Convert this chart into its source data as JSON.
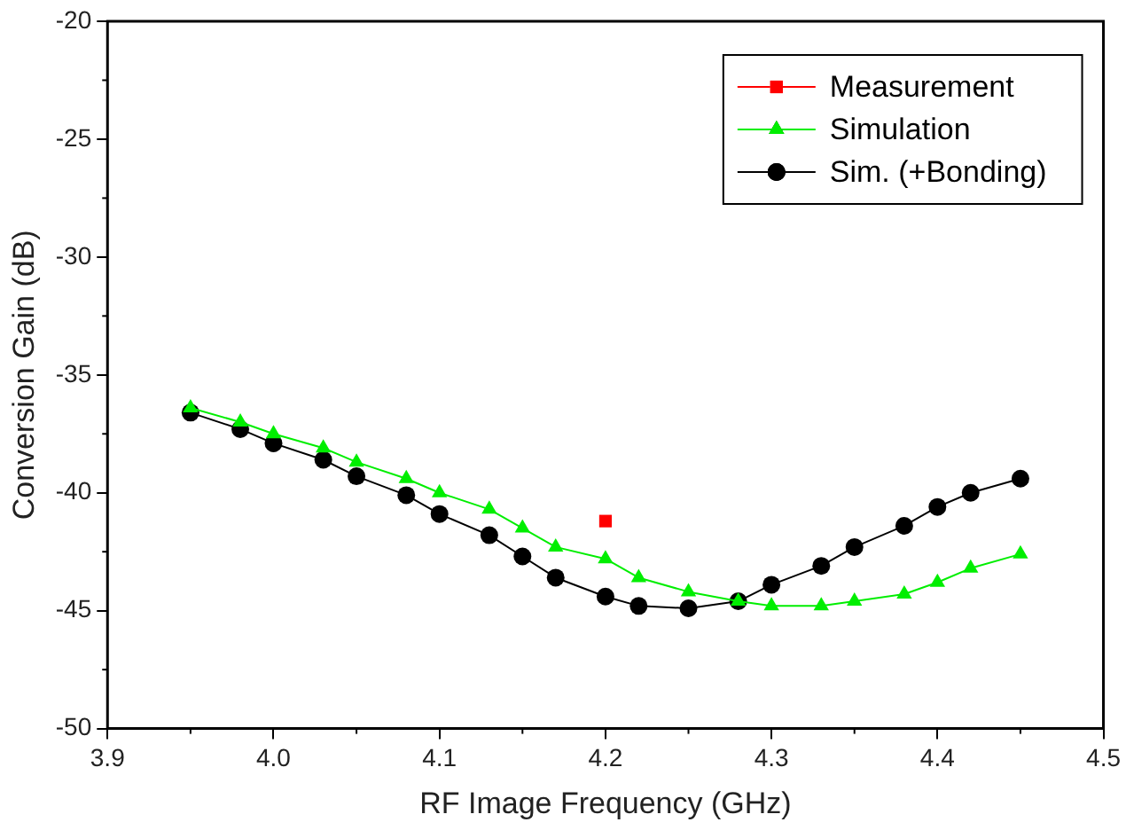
{
  "chart_data": {
    "type": "line",
    "xlabel": "RF Image Frequency (GHz)",
    "ylabel": "Conversion Gain (dB)",
    "x": [
      3.95,
      3.98,
      4.0,
      4.03,
      4.05,
      4.08,
      4.1,
      4.13,
      4.15,
      4.17,
      4.2,
      4.22,
      4.25,
      4.28,
      4.3,
      4.33,
      4.35,
      4.38,
      4.4,
      4.42,
      4.45
    ],
    "series": [
      {
        "name": "Measurement",
        "color": "#ff0000",
        "marker": "square",
        "x": [
          4.2
        ],
        "values": [
          -41.2
        ]
      },
      {
        "name": "Simulation",
        "color": "#00ee00",
        "marker": "triangle",
        "values": [
          -36.4,
          -37.0,
          -37.5,
          -38.1,
          -38.7,
          -39.4,
          -40.0,
          -40.7,
          -41.5,
          -42.3,
          -42.8,
          -43.6,
          -44.2,
          -44.6,
          -44.8,
          -44.8,
          -44.6,
          -44.3,
          -43.8,
          -43.2,
          -42.6
        ]
      },
      {
        "name": "Sim. (+Bonding)",
        "color": "#000000",
        "marker": "circle",
        "values": [
          -36.6,
          -37.3,
          -37.9,
          -38.6,
          -39.3,
          -40.1,
          -40.9,
          -41.8,
          -42.7,
          -43.6,
          -44.4,
          -44.8,
          -44.9,
          -44.6,
          -43.9,
          -43.1,
          -42.3,
          -41.4,
          -40.6,
          -40.0,
          -39.4
        ]
      }
    ],
    "xlim": [
      3.9,
      4.5
    ],
    "xticks": [
      3.9,
      {
        "value": 4.0,
        "label": "4.0"
      },
      4.1,
      4.2,
      4.3,
      4.4,
      4.5
    ],
    "ylim": [
      -50,
      -20
    ],
    "yticks": [
      -50,
      -45,
      -40,
      -35,
      -30,
      -25,
      -20
    ],
    "grid": false,
    "legend": "top right",
    "line_style": "solid"
  }
}
